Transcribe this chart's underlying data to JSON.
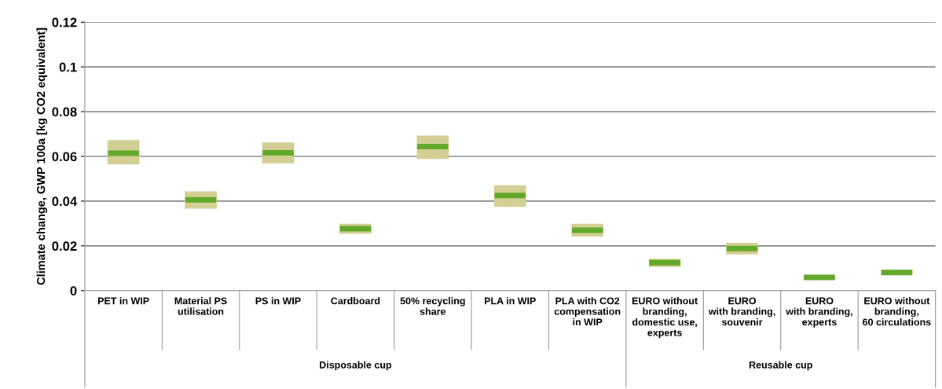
{
  "chart_data": {
    "type": "box",
    "ylabel": "Climate change, GWP 100a [kg CO2 equivalent]",
    "categories": [
      "PET in WIP",
      "Material PS\nutilisation",
      "PS in WIP",
      "Cardboard",
      "50% recycling\nshare",
      "PLA in WIP",
      "PLA with CO2\ncompensation\nin WIP",
      "EURO without\nbranding,\ndomestic use,\nexperts",
      "EURO\nwith branding,\nsouvenir",
      "EURO\nwith branding,\nexperts",
      "EURO without\nbranding,\n60 circulations"
    ],
    "series": [
      {
        "color": "#d3cf94",
        "boxes": [
          {
            "low": 0.0566,
            "q1": 0.0566,
            "median": 0.0614,
            "q3": 0.067,
            "high": 0.067
          },
          {
            "low": 0.0369,
            "q1": 0.0369,
            "median": 0.0406,
            "q3": 0.0441,
            "high": 0.0441
          },
          {
            "low": 0.0571,
            "q1": 0.0571,
            "median": 0.0616,
            "q3": 0.066,
            "high": 0.066
          },
          {
            "low": 0.0256,
            "q1": 0.0256,
            "median": 0.0277,
            "q3": 0.0296,
            "high": 0.0296
          },
          {
            "low": 0.0591,
            "q1": 0.0591,
            "median": 0.0644,
            "q3": 0.0691,
            "high": 0.0691
          },
          {
            "low": 0.0377,
            "q1": 0.0377,
            "median": 0.0425,
            "q3": 0.0468,
            "high": 0.0468
          },
          {
            "low": 0.0244,
            "q1": 0.0244,
            "median": 0.027,
            "q3": 0.0296,
            "high": 0.0296
          },
          {
            "low": 0.0108,
            "q1": 0.0108,
            "median": 0.0125,
            "q3": 0.014,
            "high": 0.014
          },
          {
            "low": 0.0164,
            "q1": 0.0164,
            "median": 0.0188,
            "q3": 0.0211,
            "high": 0.0211
          },
          {
            "low": 0.0052,
            "q1": 0.0052,
            "median": 0.0059,
            "q3": 0.0066,
            "high": 0.0066
          },
          {
            "low": 0.0074,
            "q1": 0.0074,
            "median": 0.0081,
            "q3": 0.0088,
            "high": 0.0088
          }
        ]
      }
    ],
    "annotations": [
      "Disposable cup",
      "Reusable cup"
    ],
    "ylim": [
      0,
      0.12
    ],
    "yticks": [
      0,
      0.02,
      0.04,
      0.06,
      0.08,
      0.1,
      0.12
    ],
    "grid": "y"
  }
}
